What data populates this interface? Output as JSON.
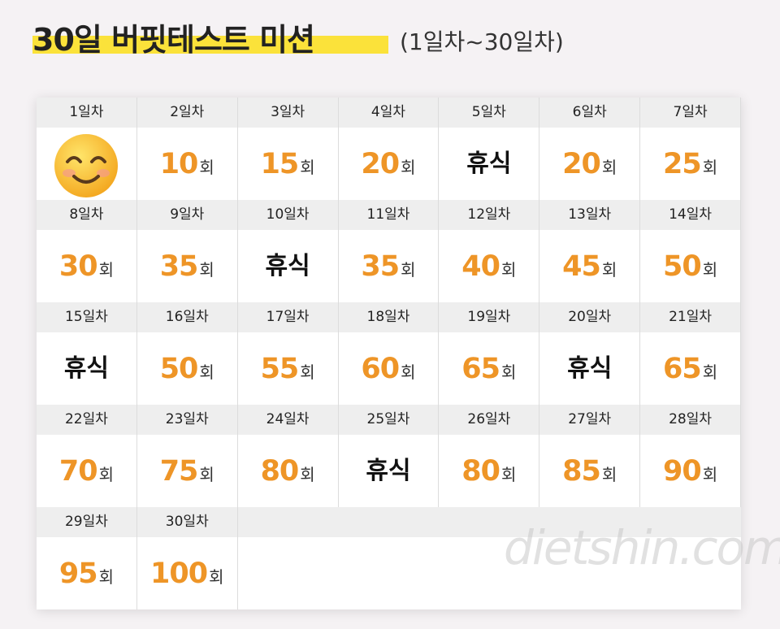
{
  "header": {
    "title": "30일 버핏테스트 미션",
    "subtitle": "(1일차~30일차)"
  },
  "watermark": "dietshin.com",
  "days": [
    {
      "day": "1일차"
    },
    {
      "day": "2일차",
      "count": 10,
      "unit": "회"
    },
    {
      "day": "3일차",
      "count": 15,
      "unit": "회"
    },
    {
      "day": "4일차",
      "count": 20,
      "unit": "회"
    },
    {
      "day": "5일차",
      "rest": "휴식"
    },
    {
      "day": "6일차",
      "count": 20,
      "unit": "회"
    },
    {
      "day": "7일차",
      "count": 25,
      "unit": "회"
    },
    {
      "day": "8일차",
      "count": 30,
      "unit": "회"
    },
    {
      "day": "9일차",
      "count": 35,
      "unit": "회"
    },
    {
      "day": "10일차",
      "rest": "휴식"
    },
    {
      "day": "11일차",
      "count": 35,
      "unit": "회"
    },
    {
      "day": "12일차",
      "count": 40,
      "unit": "회"
    },
    {
      "day": "13일차",
      "count": 45,
      "unit": "회"
    },
    {
      "day": "14일차",
      "count": 50,
      "unit": "회"
    },
    {
      "day": "15일차",
      "rest": "휴식"
    },
    {
      "day": "16일차",
      "count": 50,
      "unit": "회"
    },
    {
      "day": "17일차",
      "count": 55,
      "unit": "회"
    },
    {
      "day": "18일차",
      "count": 60,
      "unit": "회"
    },
    {
      "day": "19일차",
      "count": 65,
      "unit": "회"
    },
    {
      "day": "20일차",
      "rest": "휴식"
    },
    {
      "day": "21일차",
      "count": 65,
      "unit": "회"
    },
    {
      "day": "22일차",
      "count": 70,
      "unit": "회"
    },
    {
      "day": "23일차",
      "count": 75,
      "unit": "회"
    },
    {
      "day": "24일차",
      "count": 80,
      "unit": "회"
    },
    {
      "day": "25일차",
      "rest": "휴식"
    },
    {
      "day": "26일차",
      "count": 80,
      "unit": "회"
    },
    {
      "day": "27일차",
      "count": 85,
      "unit": "회"
    },
    {
      "day": "28일차",
      "count": 90,
      "unit": "회"
    },
    {
      "day": "29일차",
      "count": 95,
      "unit": "회"
    },
    {
      "day": "30일차",
      "count": 100,
      "unit": "회"
    }
  ]
}
